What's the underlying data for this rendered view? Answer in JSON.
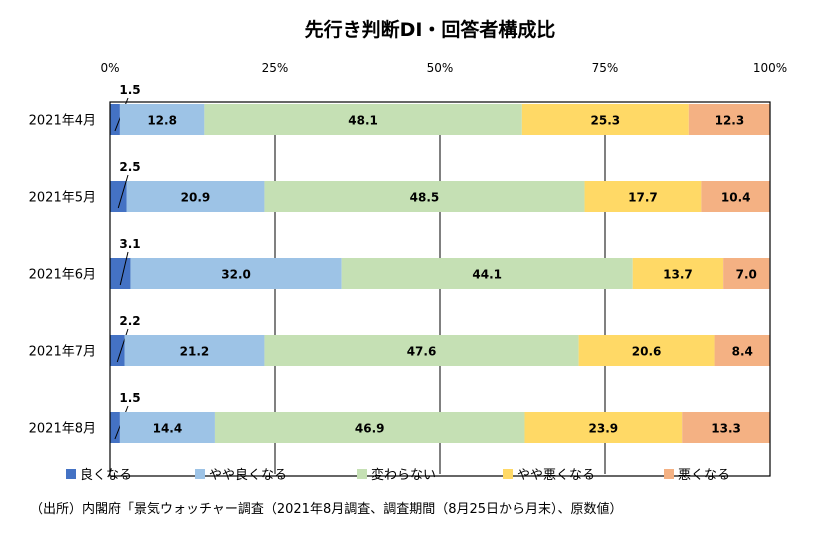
{
  "chart_data": {
    "type": "bar",
    "orientation": "horizontal-stacked-100",
    "title": "先行き判断DI・回答者構成比",
    "xticks": [
      "0%",
      "25%",
      "50%",
      "75%",
      "100%"
    ],
    "xlim": [
      0,
      100
    ],
    "categories": [
      "2021年4月",
      "2021年5月",
      "2021年6月",
      "2021年7月",
      "2021年8月"
    ],
    "series": [
      {
        "name": "良くなる",
        "color": "#4472c4",
        "values": [
          1.5,
          2.5,
          3.1,
          2.2,
          1.5
        ],
        "labels": [
          "1.5",
          "2.5",
          "3.1",
          "2.2",
          "1.5"
        ]
      },
      {
        "name": "やや良くなる",
        "color": "#9dc3e6",
        "values": [
          12.8,
          20.9,
          32.0,
          21.2,
          14.4
        ],
        "labels": [
          "12.8",
          "20.9",
          "32.0",
          "21.2",
          "14.4"
        ]
      },
      {
        "name": "変わらない",
        "color": "#c5e0b4",
        "values": [
          48.1,
          48.5,
          44.1,
          47.6,
          46.9
        ],
        "labels": [
          "48.1",
          "48.5",
          "44.1",
          "47.6",
          "46.9"
        ]
      },
      {
        "name": "やや悪くなる",
        "color": "#ffd966",
        "values": [
          25.3,
          17.7,
          13.7,
          20.6,
          23.9
        ],
        "labels": [
          "25.3",
          "17.7",
          "13.7",
          "20.6",
          "23.9"
        ]
      },
      {
        "name": "悪くなる",
        "color": "#f4b183",
        "values": [
          12.3,
          10.4,
          7.0,
          8.4,
          13.3
        ],
        "labels": [
          "12.3",
          "10.4",
          "7.0",
          "8.4",
          "13.3"
        ]
      }
    ],
    "grid": true,
    "legend_position": "bottom"
  },
  "source_note": "（出所）内閣府「景気ウォッチャー調査（2021年8月調査、調査期間（8月25日から月末）、原数値）"
}
